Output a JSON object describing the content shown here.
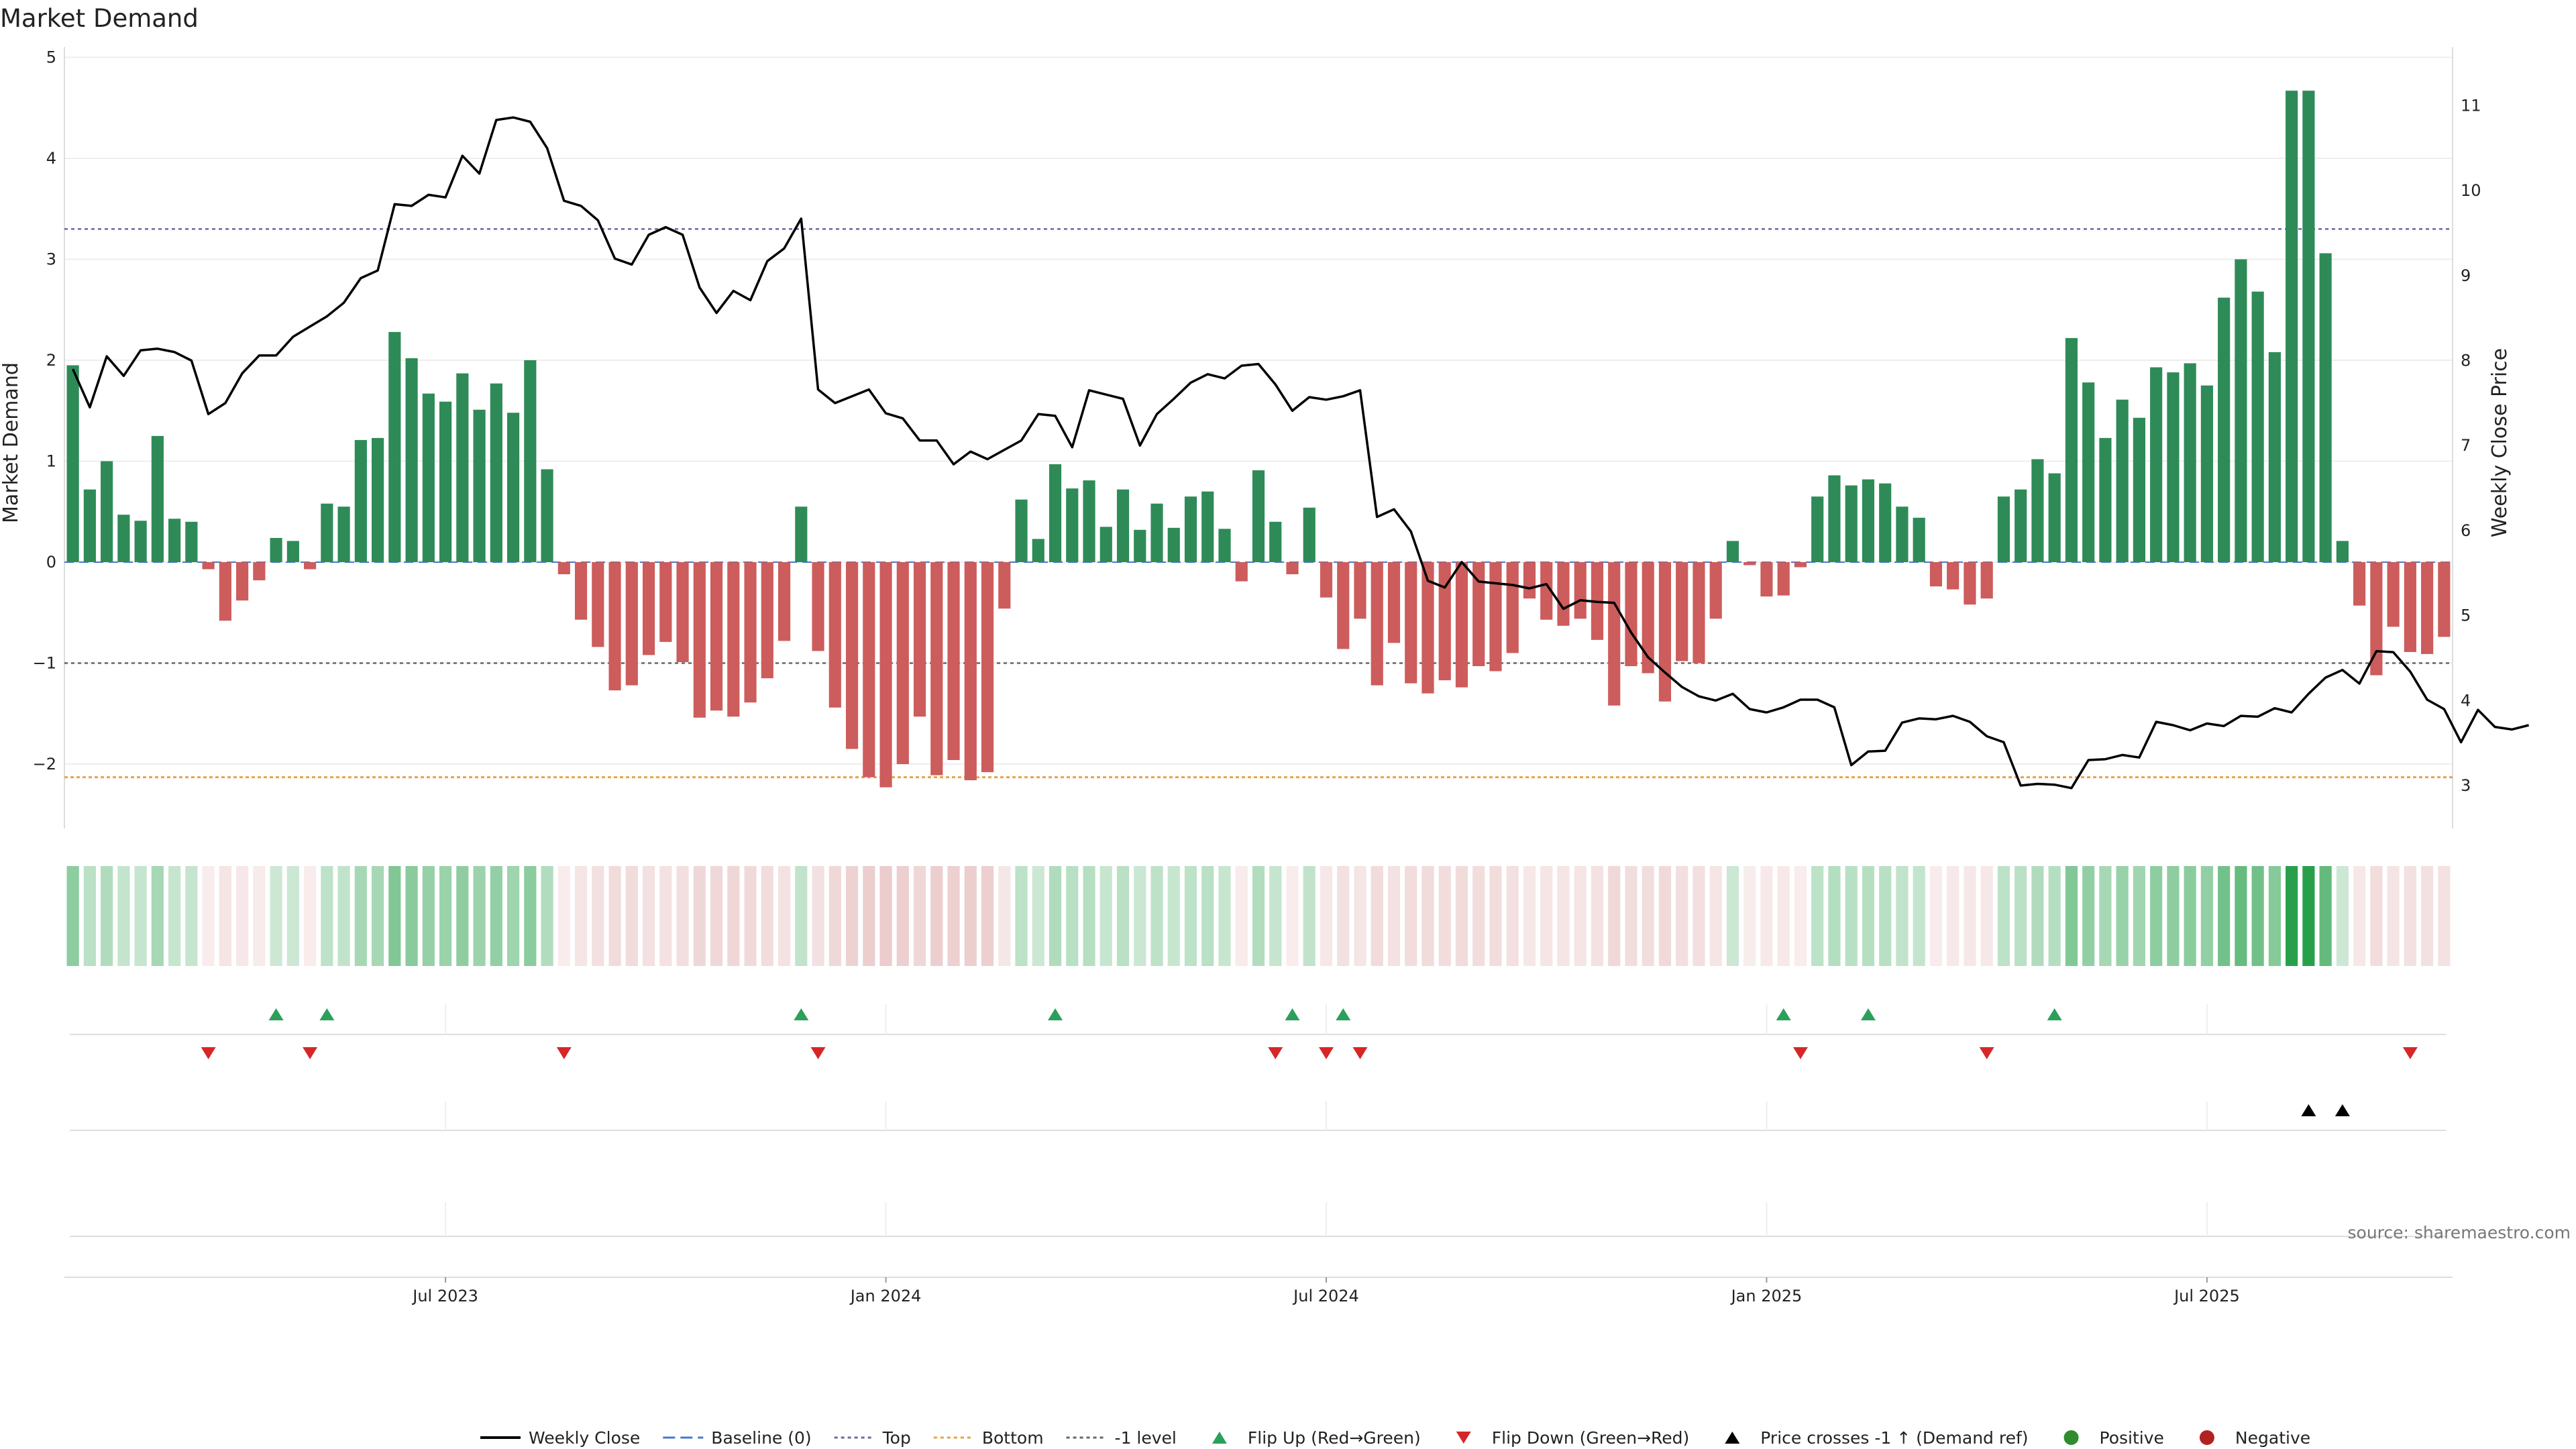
{
  "chart_data": {
    "type": "bar",
    "title": "Market Demand",
    "ylabel": "Market Demand",
    "y2label": "Weekly Close Price",
    "ylim": [
      -2.6,
      5.0
    ],
    "y2lim": [
      2.7,
      11.6
    ],
    "yticks": [
      -2,
      -1,
      0,
      1,
      2,
      3,
      4,
      5
    ],
    "y2ticks": [
      3,
      4,
      5,
      6,
      7,
      8,
      9,
      10,
      11
    ],
    "x_ticks": [
      {
        "label": "Jul 2023",
        "index": 22
      },
      {
        "label": "Jan 2024",
        "index": 48
      },
      {
        "label": "Jul 2024",
        "index": 74
      },
      {
        "label": "Jan 2025",
        "index": 100
      },
      {
        "label": "Jul 2025",
        "index": 126
      }
    ],
    "top_level": 3.3,
    "bottom_level": -2.13,
    "minus1_level": -1.0,
    "demand": [
      1.95,
      0.72,
      1.0,
      0.47,
      0.41,
      1.25,
      0.43,
      0.4,
      -0.07,
      -0.58,
      -0.38,
      -0.18,
      0.24,
      0.21,
      -0.07,
      0.58,
      0.55,
      1.21,
      1.23,
      2.28,
      2.02,
      1.67,
      1.59,
      1.87,
      1.51,
      1.77,
      1.48,
      2.0,
      0.92,
      -0.12,
      -0.57,
      -0.84,
      -1.27,
      -1.22,
      -0.92,
      -0.79,
      -0.99,
      -1.54,
      -1.47,
      -1.53,
      -1.39,
      -1.15,
      -0.78,
      0.55,
      -0.88,
      -1.44,
      -1.85,
      -2.13,
      -2.23,
      -2.0,
      -1.53,
      -2.11,
      -1.96,
      -2.16,
      -2.08,
      -0.46,
      0.62,
      0.23,
      0.97,
      0.73,
      0.81,
      0.35,
      0.72,
      0.32,
      0.58,
      0.34,
      0.65,
      0.7,
      0.33,
      -0.19,
      0.91,
      0.4,
      -0.12,
      0.54,
      -0.35,
      -0.86,
      -0.56,
      -1.22,
      -0.8,
      -1.2,
      -1.3,
      -1.17,
      -1.24,
      -1.03,
      -1.08,
      -0.9,
      -0.36,
      -0.57,
      -0.63,
      -0.56,
      -0.77,
      -1.42,
      -1.03,
      -1.1,
      -1.38,
      -0.98,
      -1.0,
      -0.56,
      0.21,
      -0.03,
      -0.34,
      -0.33,
      -0.05,
      0.65,
      0.86,
      0.76,
      0.82,
      0.78,
      0.55,
      0.44,
      -0.24,
      -0.27,
      -0.42,
      -0.36,
      0.65,
      0.72,
      1.02,
      0.88,
      2.22,
      1.78,
      1.23,
      1.61,
      1.43,
      1.93,
      1.88,
      1.97,
      1.75,
      2.62,
      3.0,
      2.68,
      2.08,
      4.67,
      4.67,
      3.06,
      0.21,
      -0.43,
      -1.12,
      -0.64,
      -0.89,
      -0.91,
      -0.74
    ],
    "price": [
      7.9,
      7.45,
      8.05,
      7.82,
      8.12,
      8.14,
      8.1,
      8.0,
      7.37,
      7.5,
      7.85,
      8.06,
      8.06,
      8.28,
      8.4,
      8.52,
      8.68,
      8.97,
      9.06,
      9.84,
      9.82,
      9.95,
      9.92,
      10.41,
      10.2,
      10.83,
      10.86,
      10.81,
      10.5,
      9.88,
      9.82,
      9.65,
      9.2,
      9.13,
      9.48,
      9.57,
      9.48,
      8.86,
      8.56,
      8.82,
      8.71,
      9.17,
      9.32,
      9.67,
      7.66,
      7.5,
      7.58,
      7.66,
      7.38,
      7.32,
      7.06,
      7.06,
      6.78,
      6.93,
      6.84,
      6.95,
      7.06,
      7.37,
      7.35,
      6.98,
      7.65,
      7.6,
      7.55,
      7.0,
      7.37,
      7.55,
      7.74,
      7.84,
      7.79,
      7.94,
      7.96,
      7.72,
      7.41,
      7.57,
      7.54,
      7.58,
      7.65,
      6.16,
      6.25,
      5.99,
      5.41,
      5.33,
      5.63,
      5.4,
      5.38,
      5.36,
      5.32,
      5.37,
      5.08,
      5.18,
      5.16,
      5.15,
      4.8,
      4.51,
      4.33,
      4.16,
      4.05,
      4.0,
      4.08,
      3.9,
      3.86,
      3.92,
      4.01,
      4.01,
      3.92,
      3.24,
      3.4,
      3.41,
      3.74,
      3.79,
      3.78,
      3.82,
      3.75,
      3.58,
      3.51,
      3.0,
      3.02,
      3.01,
      2.97,
      3.3,
      3.31,
      3.36,
      3.33,
      3.75,
      3.71,
      3.65,
      3.73,
      3.7,
      3.82,
      3.81,
      3.91,
      3.86,
      4.08,
      4.27,
      4.36,
      4.2,
      4.58,
      4.57,
      4.34,
      4.01,
      3.9,
      3.51,
      3.89,
      3.69,
      3.66,
      3.71
    ],
    "flip_up": [
      12,
      15,
      43,
      58,
      72,
      75,
      101,
      106,
      117
    ],
    "flip_down": [
      8,
      14,
      29,
      44,
      71,
      74,
      76,
      102,
      113,
      138
    ],
    "price_cross": [
      132,
      134
    ],
    "legend": [
      {
        "label": "Weekly Close",
        "kind": "line",
        "color": "#000000"
      },
      {
        "label": "Baseline (0)",
        "kind": "dash",
        "color": "#4878cf"
      },
      {
        "label": "Top",
        "kind": "dot",
        "color": "#6a6aa0"
      },
      {
        "label": "Bottom",
        "kind": "dot",
        "color": "#e8a24a"
      },
      {
        "label": "-1 level",
        "kind": "dot",
        "color": "#666666"
      },
      {
        "label": "Flip Up (Red→Green)",
        "kind": "tri-up",
        "color": "#2ca05a"
      },
      {
        "label": "Flip Down (Green→Red)",
        "kind": "tri-down",
        "color": "#d62728"
      },
      {
        "label": "Price crosses -1 ↑ (Demand ref)",
        "kind": "tri-up",
        "color": "#000000"
      },
      {
        "label": "Positive",
        "kind": "circle",
        "color": "#2e8b2e"
      },
      {
        "label": "Negative",
        "kind": "circle",
        "color": "#b22222"
      }
    ]
  },
  "colors": {
    "positive_bar": "#2e8b57",
    "negative_bar": "#cd5c5c",
    "price_line": "#000000",
    "flip_up": "#2ca05a",
    "flip_down": "#d62728"
  },
  "source": "source: sharemaestro.com"
}
